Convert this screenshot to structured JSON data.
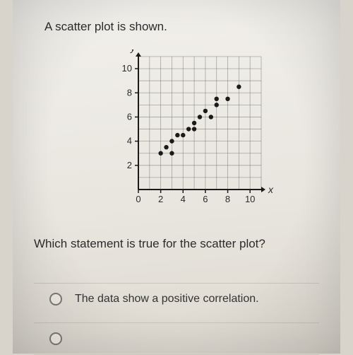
{
  "question": {
    "stem": "A scatter plot is shown.",
    "ask": "Which statement is true for the scatter plot?"
  },
  "options": [
    {
      "label": "The data show a positive correlation."
    },
    {
      "label": ""
    }
  ],
  "plot": {
    "type": "scatter",
    "xlabel": "x",
    "ylabel": "y",
    "xlim": [
      0,
      11
    ],
    "ylim": [
      0,
      11
    ],
    "xtick_labels": [
      "0",
      "2",
      "4",
      "6",
      "8",
      "10"
    ],
    "xtick_positions": [
      0,
      2,
      4,
      6,
      8,
      10
    ],
    "ytick_labels": [
      "2",
      "4",
      "6",
      "8",
      "10"
    ],
    "ytick_positions": [
      2,
      4,
      6,
      8,
      10
    ],
    "grid_color": "#6b6b6b",
    "grid_width": 0.8,
    "axis_color": "#1a1a1a",
    "axis_width": 2,
    "background_color": "transparent",
    "point_color": "#1a1a1a",
    "point_radius": 3.2,
    "label_fontsize": 14,
    "tick_fontsize": 13,
    "points": [
      {
        "x": 2.0,
        "y": 3.0
      },
      {
        "x": 2.5,
        "y": 3.5
      },
      {
        "x": 3.0,
        "y": 3.0
      },
      {
        "x": 3.0,
        "y": 4.0
      },
      {
        "x": 3.5,
        "y": 4.5
      },
      {
        "x": 4.0,
        "y": 4.5
      },
      {
        "x": 4.5,
        "y": 5.0
      },
      {
        "x": 5.0,
        "y": 5.5
      },
      {
        "x": 5.0,
        "y": 5.0
      },
      {
        "x": 5.5,
        "y": 6.0
      },
      {
        "x": 6.0,
        "y": 6.5
      },
      {
        "x": 6.5,
        "y": 6.0
      },
      {
        "x": 7.0,
        "y": 7.5
      },
      {
        "x": 7.0,
        "y": 7.0
      },
      {
        "x": 8.0,
        "y": 7.5
      },
      {
        "x": 9.0,
        "y": 8.5
      }
    ]
  }
}
